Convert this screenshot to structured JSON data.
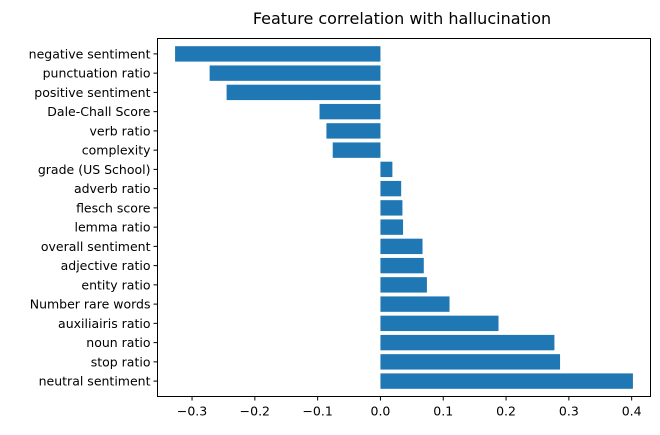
{
  "chart_data": {
    "type": "bar",
    "orientation": "horizontal",
    "title": "Feature correlation with hallucination",
    "xlabel": "",
    "ylabel": "",
    "xlim": [
      -0.355,
      0.43
    ],
    "xticks": [
      -0.3,
      -0.2,
      -0.1,
      0.0,
      0.1,
      0.2,
      0.3,
      0.4
    ],
    "xtick_labels": [
      "−0.3",
      "−0.2",
      "−0.1",
      "0.0",
      "0.1",
      "0.2",
      "0.3",
      "0.4"
    ],
    "grid": false,
    "bar_color": "#1f77b4",
    "categories": [
      "negative sentiment",
      "punctuation ratio",
      "positive sentiment",
      "Dale-Chall Score",
      "verb ratio",
      "complexity",
      "grade (US School)",
      "adverb ratio",
      "flesch score",
      "lemma ratio",
      "overall sentiment",
      "adjective ratio",
      "entity ratio",
      "Number rare words",
      "auxiliairis ratio",
      "noun ratio",
      "stop ratio",
      "neutral sentiment"
    ],
    "values": [
      -0.327,
      -0.272,
      -0.245,
      -0.097,
      -0.086,
      -0.076,
      0.019,
      0.033,
      0.035,
      0.036,
      0.067,
      0.069,
      0.074,
      0.11,
      0.188,
      0.277,
      0.286,
      0.402
    ]
  }
}
